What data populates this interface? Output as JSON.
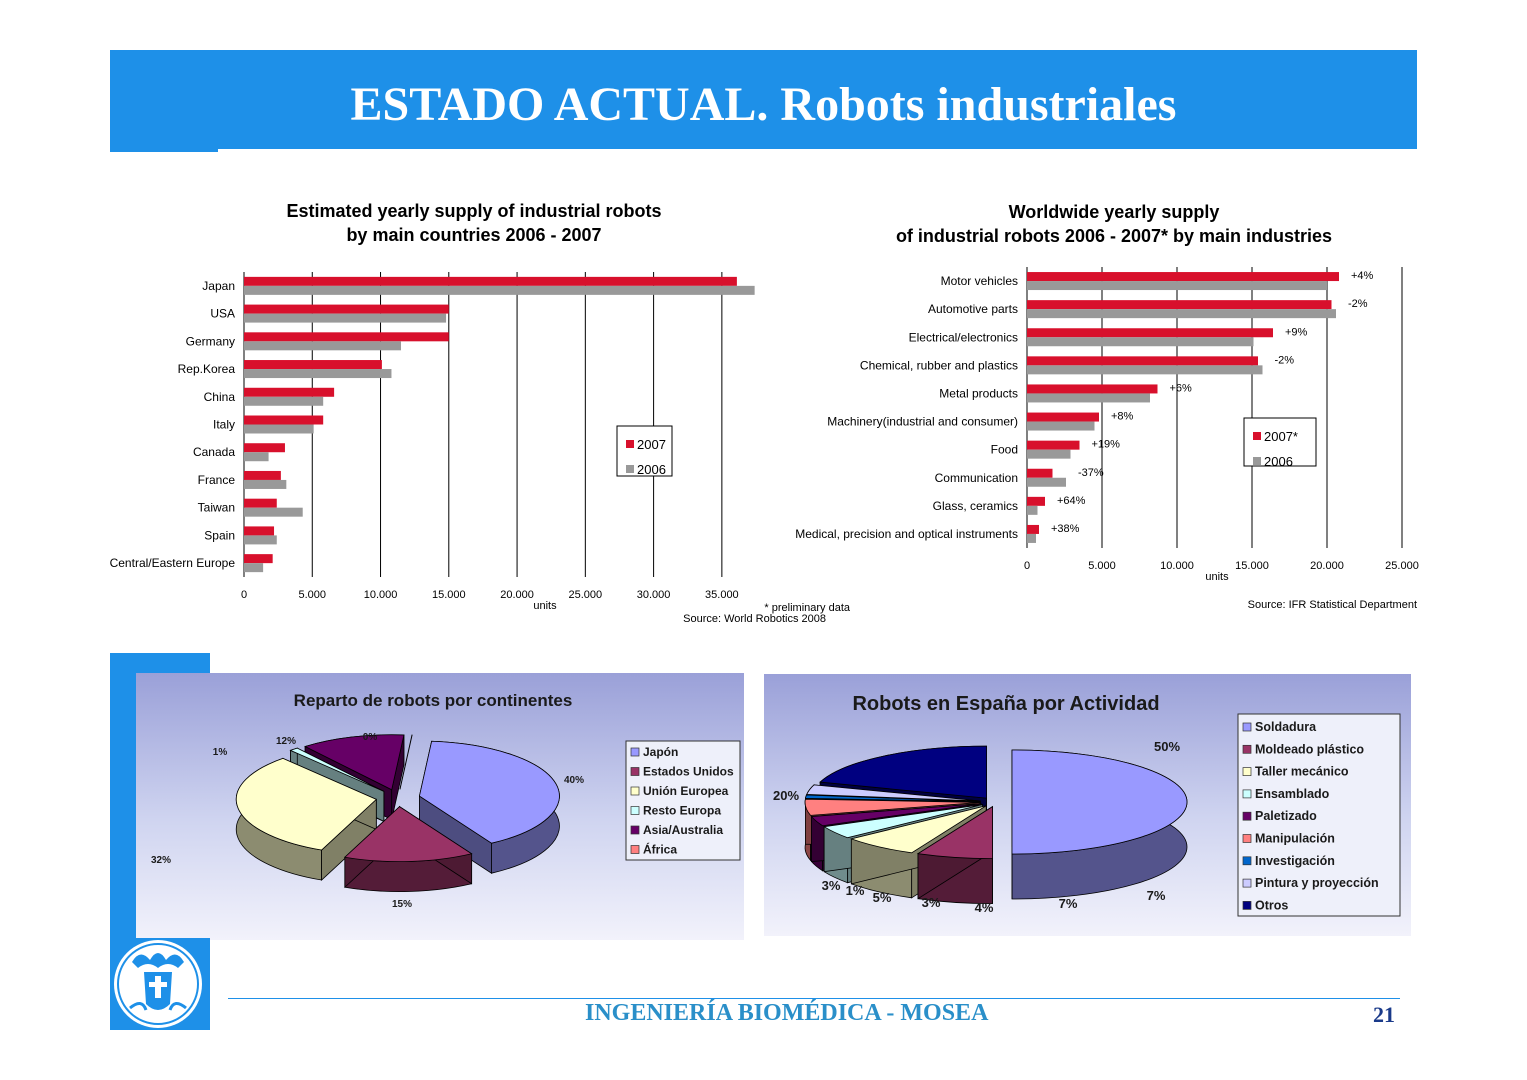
{
  "slide": {
    "title": "ESTADO ACTUAL. Robots industriales",
    "footer": "INGENIERÍA BIOMÉDICA - MOSEA",
    "page_number": "21",
    "accent_color": "#1e90e8"
  },
  "chart_data": [
    {
      "type": "bar",
      "orientation": "horizontal",
      "title": "Estimated yearly supply of industrial robots by main countries 2006 - 2007",
      "title_lines": [
        "Estimated yearly supply of industrial robots",
        "by main countries 2006 - 2007"
      ],
      "xlabel": "units",
      "xlim": [
        0,
        37500
      ],
      "x_ticks": [
        0,
        5000,
        10000,
        15000,
        20000,
        25000,
        30000,
        35000
      ],
      "x_tick_labels": [
        "0",
        "5.000",
        "10.000",
        "15.000",
        "20.000",
        "25.000",
        "30.000",
        "35.000"
      ],
      "grid": true,
      "legend_position": "center-right",
      "categories": [
        "Japan",
        "USA",
        "Germany",
        "Rep.Korea",
        "China",
        "Italy",
        "Canada",
        "France",
        "Taiwan",
        "Spain",
        "Central/Eastern Europe"
      ],
      "series": [
        {
          "name": "2007",
          "color": "#d8102c",
          "values": [
            36100,
            15000,
            15000,
            10100,
            6600,
            5800,
            3000,
            2700,
            2400,
            2200,
            2100
          ]
        },
        {
          "name": "2006",
          "color": "#999999",
          "values": [
            37400,
            14800,
            11500,
            10800,
            5800,
            5100,
            1800,
            3100,
            4300,
            2400,
            1400
          ]
        }
      ],
      "notes": [
        "* preliminary data",
        "Source: World Robotics 2008"
      ]
    },
    {
      "type": "bar",
      "orientation": "horizontal",
      "title": "Worldwide yearly supply of industrial robots 2006 - 2007* by main industries",
      "title_lines": [
        "Worldwide yearly supply",
        "of industrial robots 2006 - 2007* by main industries"
      ],
      "xlabel": "units",
      "xlim": [
        0,
        25000
      ],
      "x_ticks": [
        0,
        5000,
        10000,
        15000,
        20000,
        25000
      ],
      "x_tick_labels": [
        "0",
        "5.000",
        "10.000",
        "15.000",
        "20.000",
        "25.000"
      ],
      "grid": true,
      "legend_position": "center-right",
      "categories": [
        "Motor vehicles",
        "Automotive parts",
        "Electrical/electronics",
        "Chemical, rubber and plastics",
        "Metal products",
        "Machinery(industrial and consumer)",
        "Food",
        "Communication",
        "Glass, ceramics",
        "Medical, precision and optical instruments"
      ],
      "series": [
        {
          "name": "2007*",
          "color": "#d8102c",
          "values": [
            20800,
            20300,
            16400,
            15400,
            8700,
            4800,
            3500,
            1700,
            1200,
            800
          ]
        },
        {
          "name": "2006",
          "color": "#999999",
          "values": [
            20000,
            20600,
            15100,
            15700,
            8200,
            4500,
            2900,
            2600,
            700,
            600
          ]
        }
      ],
      "change_labels": [
        "+4%",
        "-2%",
        "+9%",
        "-2%",
        "+6%",
        "+8%",
        "+19%",
        "-37%",
        "+64%",
        "+38%"
      ],
      "notes": [
        "Source: IFR Statistical Department"
      ]
    },
    {
      "type": "pie",
      "title": "Reparto de robots por continentes",
      "legend_position": "right",
      "slices": [
        {
          "label": "Japón",
          "value": 40,
          "display": "40%",
          "color": "#9999ff"
        },
        {
          "label": "Estados Unidos",
          "value": 15,
          "display": "15%",
          "color": "#993366"
        },
        {
          "label": "Unión Europea",
          "value": 32,
          "display": "32%",
          "color": "#ffffcc"
        },
        {
          "label": "Resto Europa",
          "value": 1,
          "display": "1%",
          "color": "#ccffff"
        },
        {
          "label": "Asia/Australia",
          "value": 12,
          "display": "12%",
          "color": "#660066"
        },
        {
          "label": "África",
          "value": 0,
          "display": "0%",
          "color": "#ff8080"
        }
      ]
    },
    {
      "type": "pie",
      "title": "Robots en España por Actividad",
      "legend_position": "right",
      "slices": [
        {
          "label": "Soldadura",
          "value": 50,
          "display": "50%",
          "color": "#9999ff"
        },
        {
          "label": "Moldeado plástico",
          "value": 7,
          "display": "7%",
          "color": "#993366"
        },
        {
          "label": "Taller mecánico",
          "value": 7,
          "display": "7%",
          "color": "#ffffcc"
        },
        {
          "label": "Ensamblado",
          "value": 4,
          "display": "4%",
          "color": "#ccffff"
        },
        {
          "label": "Paletizado",
          "value": 3,
          "display": "3%",
          "color": "#660066"
        },
        {
          "label": "Manipulación",
          "value": 5,
          "display": "5%",
          "color": "#ff8080"
        },
        {
          "label": "Investigación",
          "value": 1,
          "display": "1%",
          "color": "#0066cc"
        },
        {
          "label": "Pintura y proyección",
          "value": 3,
          "display": "3%",
          "color": "#ccccff"
        },
        {
          "label": "Otros",
          "value": 20,
          "display": "20%",
          "color": "#000080"
        }
      ]
    }
  ]
}
